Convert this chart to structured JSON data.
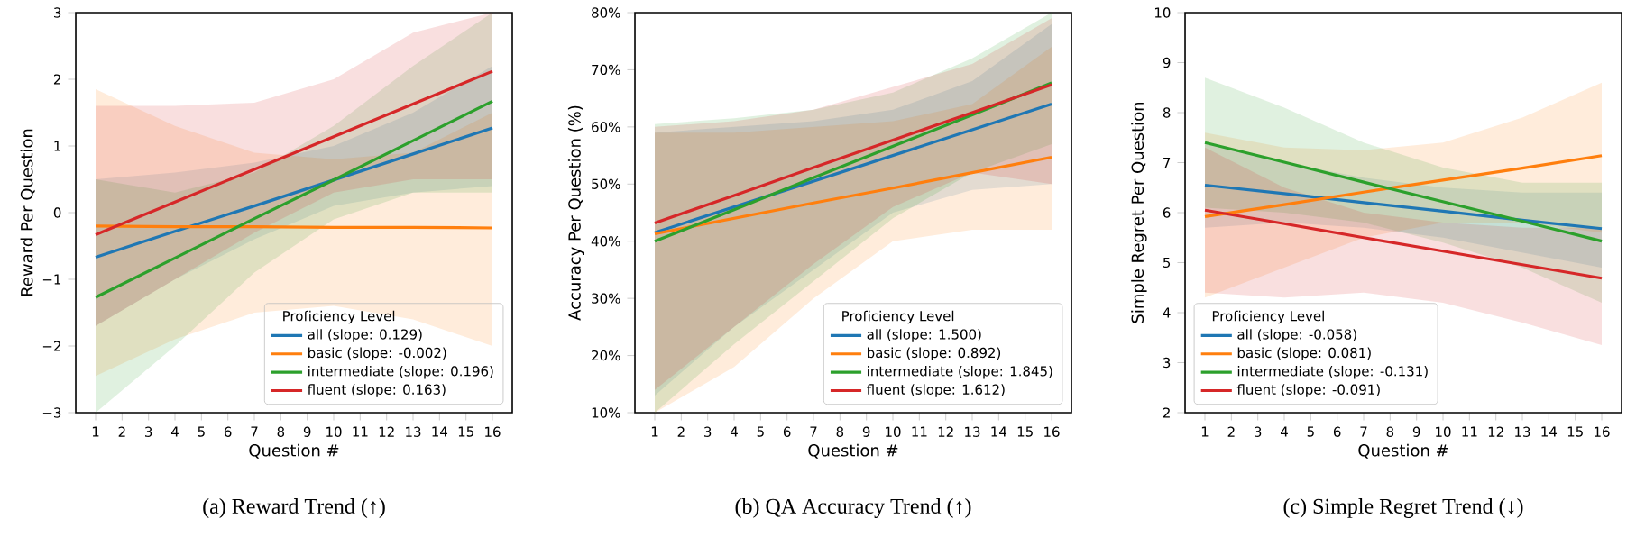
{
  "chart_data": [
    {
      "type": "line",
      "title": "(a) Reward Trend (↑)",
      "xlabel": "Question #",
      "ylabel": "Reward Per Question",
      "legend_title": "Proficiency Level",
      "legend": "bottom right",
      "x": [
        1,
        4,
        7,
        10,
        13,
        16
      ],
      "xlim": [
        0.25,
        16.75
      ],
      "xticks": [
        1,
        2,
        3,
        4,
        5,
        6,
        7,
        8,
        9,
        10,
        11,
        12,
        13,
        14,
        15,
        16
      ],
      "ylim": [
        -3,
        3
      ],
      "yticks": [
        {
          "value": -3,
          "label": "−3"
        },
        {
          "value": -2,
          "label": "−2"
        },
        {
          "value": -1,
          "label": "−1"
        },
        0,
        1,
        2,
        3
      ],
      "series": [
        {
          "name": "all (slope: 0.129)",
          "color": "#1f77b4",
          "values": [
            -0.67,
            -0.28,
            0.1,
            0.49,
            0.88,
            1.27
          ],
          "lower": [
            -1.7,
            -1.0,
            -0.4,
            0.1,
            0.3,
            0.4
          ],
          "upper": [
            0.5,
            0.6,
            0.75,
            1.0,
            1.5,
            2.2
          ]
        },
        {
          "name": "basic (slope: -0.002)",
          "color": "#ff7f0e",
          "values": [
            -0.2,
            -0.21,
            -0.21,
            -0.22,
            -0.22,
            -0.23
          ],
          "lower": [
            -2.45,
            -1.9,
            -1.5,
            -1.4,
            -1.6,
            -2.0
          ],
          "upper": [
            1.85,
            1.3,
            0.9,
            0.8,
            0.9,
            1.5
          ]
        },
        {
          "name": "intermediate (slope: 0.196)",
          "color": "#2ca02c",
          "values": [
            -1.27,
            -0.68,
            -0.09,
            0.49,
            1.08,
            1.67
          ],
          "lower": [
            -3,
            -2.0,
            -0.9,
            -0.1,
            0.3,
            0.3
          ],
          "upper": [
            0.5,
            0.3,
            0.6,
            1.3,
            2.2,
            3
          ]
        },
        {
          "name": "fluent (slope: 0.163)",
          "color": "#d62728",
          "values": [
            -0.33,
            0.16,
            0.65,
            1.14,
            1.63,
            2.12
          ],
          "lower": [
            -1.7,
            -1.0,
            -0.3,
            0.3,
            0.5,
            0.5
          ],
          "upper": [
            1.6,
            1.6,
            1.65,
            2.0,
            2.7,
            3
          ]
        }
      ]
    },
    {
      "type": "line",
      "title": "(b) QA Accuracy Trend (↑)",
      "xlabel": "Question #",
      "ylabel": "Accuracy Per Question (%)",
      "legend_title": "Proficiency Level",
      "legend": "bottom right",
      "x": [
        1,
        4,
        7,
        10,
        13,
        16
      ],
      "xlim": [
        0.25,
        16.75
      ],
      "xticks": [
        1,
        2,
        3,
        4,
        5,
        6,
        7,
        8,
        9,
        10,
        11,
        12,
        13,
        14,
        15,
        16
      ],
      "ylim": [
        10,
        80
      ],
      "yticks": [
        {
          "value": 10,
          "label": "10%"
        },
        {
          "value": 20,
          "label": "20%"
        },
        {
          "value": 30,
          "label": "30%"
        },
        {
          "value": 40,
          "label": "40%"
        },
        {
          "value": 50,
          "label": "50%"
        },
        {
          "value": 60,
          "label": "60%"
        },
        {
          "value": 70,
          "label": "70%"
        },
        {
          "value": 80,
          "label": "80%"
        }
      ],
      "series": [
        {
          "name": "all (slope: 1.500)",
          "color": "#1f77b4",
          "values": [
            41.5,
            46,
            50.5,
            55,
            59.5,
            64
          ],
          "lower": [
            13,
            25,
            35,
            45,
            49,
            50
          ],
          "upper": [
            59,
            60,
            61,
            63,
            68,
            78
          ]
        },
        {
          "name": "basic (slope: 0.892)",
          "color": "#ff7f0e",
          "values": [
            41.3,
            44.0,
            46.7,
            49.3,
            52.0,
            54.7
          ],
          "lower": [
            10,
            18,
            30,
            40,
            42,
            42
          ],
          "upper": [
            59,
            59,
            60,
            61,
            64,
            74
          ]
        },
        {
          "name": "intermediate (slope: 1.845)",
          "color": "#2ca02c",
          "values": [
            40,
            45.5,
            51.1,
            56.6,
            62.1,
            67.7
          ],
          "lower": [
            10,
            22,
            33,
            44,
            52,
            57
          ],
          "upper": [
            60.5,
            61.5,
            63,
            66,
            72,
            80
          ]
        },
        {
          "name": "fluent (slope: 1.612)",
          "color": "#d62728",
          "values": [
            43.2,
            48.0,
            52.9,
            57.7,
            62.5,
            67.4
          ],
          "lower": [
            14,
            25,
            36,
            46,
            52,
            50
          ],
          "upper": [
            60,
            61,
            63,
            67,
            71,
            79
          ]
        }
      ]
    },
    {
      "type": "line",
      "title": "(c) Simple Regret Trend (↓)",
      "xlabel": "Question #",
      "ylabel": "Simple Regret Per Question",
      "legend_title": "Proficiency Level",
      "legend": "bottom left",
      "x": [
        1,
        4,
        7,
        10,
        13,
        16
      ],
      "xlim": [
        0.25,
        16.75
      ],
      "xticks": [
        1,
        2,
        3,
        4,
        5,
        6,
        7,
        8,
        9,
        10,
        11,
        12,
        13,
        14,
        15,
        16
      ],
      "ylim": [
        2,
        10
      ],
      "yticks": [
        2,
        3,
        4,
        5,
        6,
        7,
        8,
        9,
        10
      ],
      "series": [
        {
          "name": "all (slope: -0.058)",
          "color": "#1f77b4",
          "values": [
            6.55,
            6.38,
            6.2,
            6.03,
            5.85,
            5.68
          ],
          "lower": [
            5.7,
            5.8,
            5.7,
            5.5,
            5.2,
            4.9
          ],
          "upper": [
            7.4,
            7.0,
            6.7,
            6.5,
            6.4,
            6.4
          ]
        },
        {
          "name": "basic (slope: 0.081)",
          "color": "#ff7f0e",
          "values": [
            5.92,
            6.16,
            6.41,
            6.65,
            6.89,
            7.14
          ],
          "lower": [
            4.3,
            4.9,
            5.5,
            5.8,
            5.8,
            5.6
          ],
          "upper": [
            7.6,
            7.3,
            7.25,
            7.4,
            7.9,
            8.6
          ]
        },
        {
          "name": "intermediate (slope: -0.131)",
          "color": "#2ca02c",
          "values": [
            7.4,
            7.01,
            6.61,
            6.22,
            5.83,
            5.43
          ],
          "lower": [
            6.1,
            6.0,
            5.8,
            5.4,
            4.9,
            4.2
          ],
          "upper": [
            8.7,
            8.1,
            7.4,
            6.9,
            6.6,
            6.6
          ]
        },
        {
          "name": "fluent (slope: -0.091)",
          "color": "#d62728",
          "values": [
            6.05,
            5.78,
            5.5,
            5.23,
            4.96,
            4.69
          ],
          "lower": [
            4.4,
            4.3,
            4.4,
            4.2,
            3.8,
            3.35
          ],
          "upper": [
            7.3,
            6.5,
            6.0,
            5.8,
            5.7,
            5.7
          ]
        }
      ]
    }
  ]
}
